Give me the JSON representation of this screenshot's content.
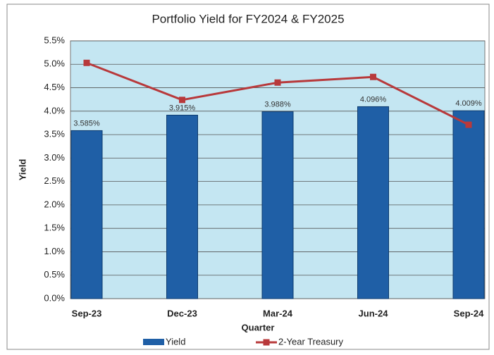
{
  "chart_data": {
    "type": "bar",
    "title": "Portfolio Yield for FY2024 & FY2025",
    "x_label": "Quarter",
    "y_label": "Yield",
    "categories": [
      "Sep-23",
      "Dec-23",
      "Mar-24",
      "Jun-24",
      "Sep-24"
    ],
    "series": [
      {
        "name": "Yield",
        "type": "bar",
        "color": "#1f5fa6",
        "values": [
          3.585,
          3.915,
          3.988,
          4.096,
          4.009
        ],
        "value_labels": [
          "3.585%",
          "3.915%",
          "3.988%",
          "4.096%",
          "4.009%"
        ]
      },
      {
        "name": "2-Year Treasury",
        "type": "line",
        "color": "#b8393b",
        "values": [
          5.03,
          4.24,
          4.61,
          4.73,
          3.71
        ]
      }
    ],
    "ylim": [
      0,
      5.5
    ],
    "yticks": [
      {
        "value": 0,
        "label": "0.0%"
      },
      {
        "value": 0.5,
        "label": "0.5%"
      },
      {
        "value": 1,
        "label": "1.0%"
      },
      {
        "value": 1.5,
        "label": "1.5%"
      },
      {
        "value": 2,
        "label": "2.0%"
      },
      {
        "value": 2.5,
        "label": "2.5%"
      },
      {
        "value": 3,
        "label": "3.0%"
      },
      {
        "value": 3.5,
        "label": "3.5%"
      },
      {
        "value": 4,
        "label": "4.0%"
      },
      {
        "value": 4.5,
        "label": "4.5%"
      },
      {
        "value": 5,
        "label": "5.0%"
      },
      {
        "value": 5.5,
        "label": "5.5%"
      }
    ],
    "grid": true
  }
}
